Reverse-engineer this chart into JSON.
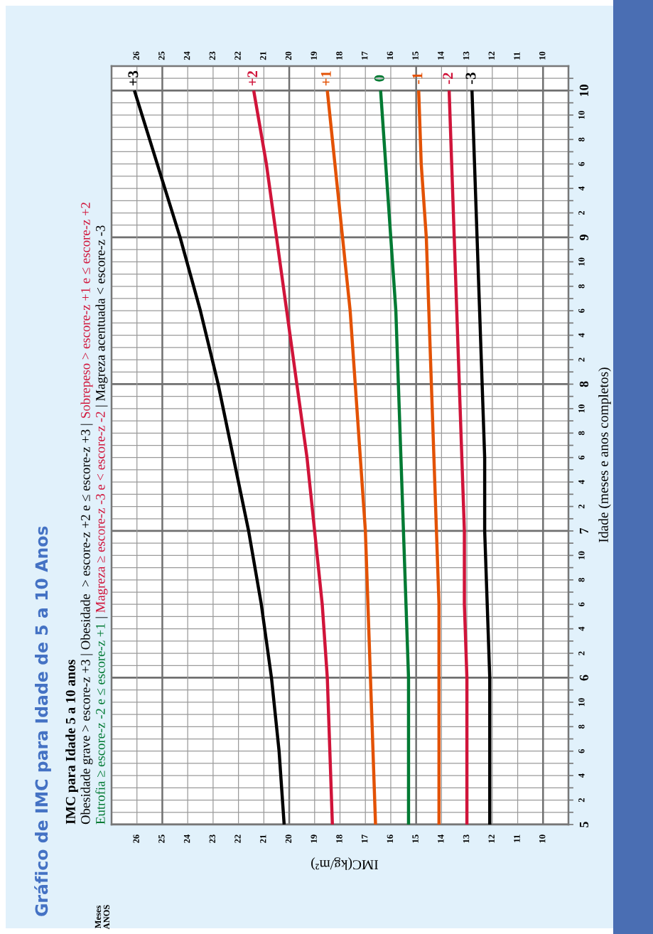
{
  "chart_data": {
    "type": "line",
    "title": "Gráfico de IMC para Idade de 5 a 10 Anos",
    "subtitle": "IMC para Idade 5 a 10 anos",
    "xlabel": "IMC(kg/m²)",
    "ylabel": "Idade (meses e anos completos)",
    "annotations": [
      "Obesidade grave > escore-z +3 | Obesidade  > escore-z +2 e ≤ escore-z +3 | ",
      "Sobrepeso > escore-z +1 e ≤ escore-z +2",
      "Eutrofia ≥ escore-z -2 e ≤ escore-z +1",
      " | ",
      "Magreza ≥ escore-z -3 e < escore-z -2",
      " | Magreza acentuada < escore-z -3",
      "Meses",
      "ANOS",
      "2",
      "4",
      "6",
      "8",
      "10",
      "2",
      "4",
      "6",
      "8",
      "10",
      "2",
      "4",
      "6",
      "8",
      "10",
      "2",
      "4",
      "6",
      "8",
      "10",
      "2",
      "4",
      "6",
      "8",
      "10"
    ],
    "series": [
      {
        "name": "+3",
        "color": "#000000",
        "x": [
          20.2,
          20.4,
          20.7,
          21.1,
          21.6,
          22.2,
          22.8,
          23.5,
          24.3,
          25.2,
          26.1
        ],
        "values": [
          5,
          5.5,
          6,
          6.5,
          7,
          7.5,
          8,
          8.5,
          9,
          9.5,
          10
        ]
      },
      {
        "name": "+2",
        "color": "#d0143a",
        "x": [
          18.3,
          18.4,
          18.5,
          18.7,
          19.0,
          19.3,
          19.7,
          20.1,
          20.5,
          20.9,
          21.4
        ],
        "values": [
          5,
          5.5,
          6,
          6.5,
          7,
          7.5,
          8,
          8.5,
          9,
          9.5,
          10
        ]
      },
      {
        "name": "+1",
        "color": "#e35205",
        "x": [
          16.6,
          16.7,
          16.8,
          16.9,
          17.0,
          17.2,
          17.4,
          17.6,
          17.9,
          18.2,
          18.5
        ],
        "values": [
          5,
          5.5,
          6,
          6.5,
          7,
          7.5,
          8,
          8.5,
          9,
          9.5,
          10
        ]
      },
      {
        "name": "0",
        "color": "#007a33",
        "x": [
          15.3,
          15.3,
          15.3,
          15.4,
          15.5,
          15.6,
          15.7,
          15.8,
          16.0,
          16.2,
          16.4
        ],
        "values": [
          5,
          5.5,
          6,
          6.5,
          7,
          7.5,
          8,
          8.5,
          9,
          9.5,
          10
        ]
      },
      {
        "name": "-1",
        "color": "#e35205",
        "x": [
          14.1,
          14.1,
          14.1,
          14.1,
          14.2,
          14.3,
          14.4,
          14.5,
          14.6,
          14.8,
          14.9
        ],
        "values": [
          5,
          5.5,
          6,
          6.5,
          7,
          7.5,
          8,
          8.5,
          9,
          9.5,
          10
        ]
      },
      {
        "name": "-2",
        "color": "#d0143a",
        "x": [
          13.0,
          13.0,
          13.0,
          13.1,
          13.1,
          13.2,
          13.3,
          13.4,
          13.5,
          13.6,
          13.7
        ],
        "values": [
          5,
          5.5,
          6,
          6.5,
          7,
          7.5,
          8,
          8.5,
          9,
          9.5,
          10
        ]
      },
      {
        "name": "-3",
        "color": "#000000",
        "x": [
          12.1,
          12.1,
          12.1,
          12.2,
          12.3,
          12.3,
          12.4,
          12.5,
          12.6,
          12.7,
          12.8
        ],
        "values": [
          5,
          5.5,
          6,
          6.5,
          7,
          7.5,
          8,
          8.5,
          9,
          9.5,
          10
        ]
      }
    ],
    "ylim": [
      5,
      10.1667
    ],
    "yticks": [
      5,
      {
        "value": 5.0833,
        "label": null
      },
      {
        "value": 5.1667,
        "label": null
      },
      {
        "value": 5.25,
        "label": null
      },
      {
        "value": 5.3333,
        "label": null
      },
      {
        "value": 5.4167,
        "label": null
      },
      {
        "value": 5.5,
        "label": null
      },
      {
        "value": 5.5833,
        "label": null
      },
      {
        "value": 5.6667,
        "label": null
      },
      {
        "value": 5.75,
        "label": null
      },
      {
        "value": 5.8333,
        "label": null
      },
      {
        "value": 5.9167,
        "label": null
      },
      6,
      {
        "value": 6.0833,
        "label": null
      },
      {
        "value": 6.1667,
        "label": null
      },
      {
        "value": 6.25,
        "label": null
      },
      {
        "value": 6.3333,
        "label": null
      },
      {
        "value": 6.4167,
        "label": null
      },
      {
        "value": 6.5,
        "label": null
      },
      {
        "value": 6.5833,
        "label": null
      },
      {
        "value": 6.6667,
        "label": null
      },
      {
        "value": 6.75,
        "label": null
      },
      {
        "value": 6.8333,
        "label": null
      },
      {
        "value": 6.9167,
        "label": null
      },
      7,
      {
        "value": 7.0833,
        "label": null
      },
      {
        "value": 7.1667,
        "label": null
      },
      {
        "value": 7.25,
        "label": null
      },
      {
        "value": 7.3333,
        "label": null
      },
      {
        "value": 7.4167,
        "label": null
      },
      {
        "value": 7.5,
        "label": null
      },
      {
        "value": 7.5833,
        "label": null
      },
      {
        "value": 7.6667,
        "label": null
      },
      {
        "value": 7.75,
        "label": null
      },
      {
        "value": 7.8333,
        "label": null
      },
      {
        "value": 7.9167,
        "label": null
      },
      8,
      {
        "value": 8.0833,
        "label": null
      },
      {
        "value": 8.1667,
        "label": null
      },
      {
        "value": 8.25,
        "label": null
      },
      {
        "value": 8.3333,
        "label": null
      },
      {
        "value": 8.4167,
        "label": null
      },
      {
        "value": 8.5,
        "label": null
      },
      {
        "value": 8.5833,
        "label": null
      },
      {
        "value": 8.6667,
        "label": null
      },
      {
        "value": 8.75,
        "label": null
      },
      {
        "value": 8.8333,
        "label": null
      },
      {
        "value": 8.9167,
        "label": null
      },
      9,
      {
        "value": 9.0833,
        "label": null
      },
      {
        "value": 9.1667,
        "label": null
      },
      {
        "value": 9.25,
        "label": null
      },
      {
        "value": 9.3333,
        "label": null
      },
      {
        "value": 9.4167,
        "label": null
      },
      {
        "value": 9.5,
        "label": null
      },
      {
        "value": 9.5833,
        "label": null
      },
      {
        "value": 9.6667,
        "label": null
      },
      {
        "value": 9.75,
        "label": null
      },
      {
        "value": 9.8333,
        "label": null
      },
      {
        "value": 9.9167,
        "label": null
      },
      10,
      {
        "value": 10.0833,
        "label": null
      }
    ],
    "xlim": [
      27,
      9
    ],
    "xticks": [
      26,
      25,
      24,
      23,
      22,
      21,
      20,
      19,
      18,
      17,
      16,
      15,
      14,
      13,
      12,
      11,
      10
    ],
    "x2lim": [
      27,
      9
    ],
    "x2ticks": [
      26,
      25,
      24,
      23,
      22,
      21,
      20,
      19,
      18,
      17,
      16,
      15,
      14,
      13,
      12,
      11,
      10
    ],
    "grid": true,
    "line_style": "solid",
    "marker": "none"
  }
}
